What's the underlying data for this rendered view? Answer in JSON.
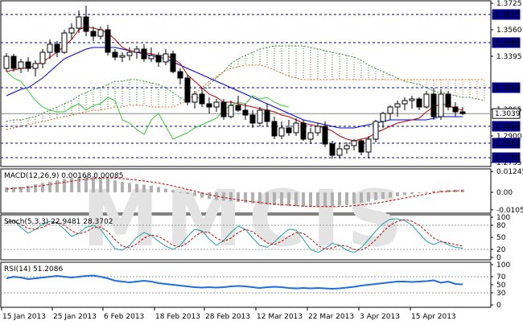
{
  "chart_data": [
    {
      "type": "candlestick",
      "pair_panel": "price",
      "axis_ticks": [
        "1.3725",
        "1.3560",
        "1.3395",
        "1.3065",
        "1.2900",
        "1.2735"
      ],
      "levels": [
        {
          "value": 1.3655,
          "label": "1.3655"
        },
        {
          "value": 1.348,
          "label": "1.3480"
        },
        {
          "value": 1.32,
          "label": "1.3200"
        },
        {
          "value": 1.3039,
          "label": "1.3039",
          "current": true
        },
        {
          "value": 1.296,
          "label": "1.2960"
        },
        {
          "value": 1.2855,
          "label": "1.2855"
        },
        {
          "value": 1.2765,
          "label": "1.2765"
        }
      ],
      "ylim": [
        1.271,
        1.374
      ],
      "x_labels": [
        "15 Jan 2013",
        "25 Jan 2013",
        "6 Feb 2013",
        "18 Feb 2013",
        "28 Feb 2013",
        "12 Mar 2013",
        "22 Mar 2013",
        "3 Apr 2013",
        "15 Apr 2013"
      ],
      "candles": [
        [
          1.332,
          1.3415,
          1.33,
          1.3395
        ],
        [
          1.3395,
          1.341,
          1.33,
          1.332
        ],
        [
          1.332,
          1.338,
          1.329,
          1.336
        ],
        [
          1.336,
          1.339,
          1.33,
          1.332
        ],
        [
          1.332,
          1.337,
          1.327,
          1.335
        ],
        [
          1.335,
          1.344,
          1.332,
          1.342
        ],
        [
          1.342,
          1.35,
          1.338,
          1.347
        ],
        [
          1.347,
          1.349,
          1.339,
          1.342
        ],
        [
          1.342,
          1.356,
          1.341,
          1.354
        ],
        [
          1.354,
          1.36,
          1.35,
          1.357
        ],
        [
          1.357,
          1.368,
          1.354,
          1.364
        ],
        [
          1.364,
          1.371,
          1.352,
          1.355
        ],
        [
          1.355,
          1.358,
          1.349,
          1.352
        ],
        [
          1.352,
          1.358,
          1.35,
          1.356
        ],
        [
          1.356,
          1.359,
          1.34,
          1.342
        ],
        [
          1.342,
          1.344,
          1.337,
          1.339
        ],
        [
          1.339,
          1.342,
          1.336,
          1.34
        ],
        [
          1.34,
          1.345,
          1.337,
          1.342
        ],
        [
          1.342,
          1.346,
          1.338,
          1.344
        ],
        [
          1.344,
          1.347,
          1.336,
          1.338
        ],
        [
          1.338,
          1.345,
          1.336,
          1.34
        ],
        [
          1.34,
          1.342,
          1.333,
          1.336
        ],
        [
          1.336,
          1.344,
          1.334,
          1.341
        ],
        [
          1.341,
          1.343,
          1.329,
          1.33
        ],
        [
          1.33,
          1.332,
          1.322,
          1.326
        ],
        [
          1.326,
          1.328,
          1.309,
          1.311
        ],
        [
          1.311,
          1.318,
          1.307,
          1.316
        ],
        [
          1.316,
          1.32,
          1.308,
          1.31
        ],
        [
          1.31,
          1.314,
          1.304,
          1.308
        ],
        [
          1.308,
          1.313,
          1.305,
          1.311
        ],
        [
          1.311,
          1.313,
          1.3,
          1.302
        ],
        [
          1.302,
          1.312,
          1.301,
          1.309
        ],
        [
          1.309,
          1.315,
          1.305,
          1.306
        ],
        [
          1.306,
          1.31,
          1.3,
          1.303
        ],
        [
          1.303,
          1.306,
          1.295,
          1.298
        ],
        [
          1.298,
          1.308,
          1.296,
          1.306
        ],
        [
          1.306,
          1.31,
          1.296,
          1.299
        ],
        [
          1.299,
          1.302,
          1.288,
          1.29
        ],
        [
          1.29,
          1.299,
          1.288,
          1.295
        ],
        [
          1.295,
          1.3,
          1.29,
          1.292
        ],
        [
          1.292,
          1.301,
          1.29,
          1.298
        ],
        [
          1.298,
          1.3,
          1.287,
          1.288
        ],
        [
          1.288,
          1.295,
          1.285,
          1.292
        ],
        [
          1.292,
          1.298,
          1.29,
          1.296
        ],
        [
          1.296,
          1.299,
          1.283,
          1.285
        ],
        [
          1.285,
          1.287,
          1.276,
          1.278
        ],
        [
          1.278,
          1.286,
          1.276,
          1.282
        ],
        [
          1.282,
          1.286,
          1.279,
          1.284
        ],
        [
          1.284,
          1.288,
          1.281,
          1.287
        ],
        [
          1.287,
          1.288,
          1.278,
          1.28
        ],
        [
          1.28,
          1.29,
          1.276,
          1.288
        ],
        [
          1.288,
          1.3,
          1.286,
          1.299
        ],
        [
          1.299,
          1.305,
          1.295,
          1.304
        ],
        [
          1.304,
          1.309,
          1.3,
          1.308
        ],
        [
          1.308,
          1.312,
          1.302,
          1.31
        ],
        [
          1.31,
          1.314,
          1.306,
          1.312
        ],
        [
          1.312,
          1.315,
          1.307,
          1.313
        ],
        [
          1.313,
          1.314,
          1.306,
          1.308
        ],
        [
          1.308,
          1.318,
          1.307,
          1.316
        ],
        [
          1.316,
          1.32,
          1.3,
          1.302
        ],
        [
          1.302,
          1.319,
          1.3,
          1.316
        ],
        [
          1.316,
          1.318,
          1.306,
          1.308
        ],
        [
          1.308,
          1.311,
          1.302,
          1.305
        ],
        [
          1.305,
          1.308,
          1.303,
          1.3039
        ]
      ],
      "tenkan": [
        1.33,
        1.331,
        1.332,
        1.332,
        1.334,
        1.336,
        1.339,
        1.342,
        1.346,
        1.35,
        1.356,
        1.358,
        1.357,
        1.356,
        1.354,
        1.35,
        1.345,
        1.343,
        1.342,
        1.342,
        1.341,
        1.34,
        1.34,
        1.338,
        1.335,
        1.328,
        1.324,
        1.32,
        1.316,
        1.314,
        1.311,
        1.311,
        1.31,
        1.309,
        1.308,
        1.307,
        1.306,
        1.305,
        1.303,
        1.302,
        1.3,
        1.298,
        1.297,
        1.296,
        1.295,
        1.293,
        1.29,
        1.288,
        1.287,
        1.288,
        1.289,
        1.292,
        1.294,
        1.296,
        1.298,
        1.299,
        1.3,
        1.301,
        1.305,
        1.308,
        1.31,
        1.309,
        1.307,
        1.306
      ],
      "kijun": [
        1.315,
        1.317,
        1.319,
        1.32,
        1.323,
        1.326,
        1.33,
        1.334,
        1.338,
        1.34,
        1.342,
        1.344,
        1.345,
        1.345,
        1.345,
        1.345,
        1.344,
        1.343,
        1.342,
        1.341,
        1.34,
        1.339,
        1.338,
        1.336,
        1.334,
        1.332,
        1.33,
        1.328,
        1.326,
        1.324,
        1.322,
        1.32,
        1.318,
        1.316,
        1.314,
        1.312,
        1.31,
        1.308,
        1.306,
        1.304,
        1.302,
        1.3,
        1.299,
        1.298,
        1.297,
        1.296,
        1.295,
        1.295,
        1.295,
        1.296,
        1.297,
        1.298,
        1.299,
        1.3,
        1.3,
        1.3,
        1.3,
        1.3,
        1.3,
        1.301,
        1.302,
        1.302,
        1.302,
        1.302
      ],
      "chikou": [
        1.33,
        1.326,
        1.324,
        1.318,
        1.312,
        1.308,
        1.306,
        1.305,
        1.305,
        1.308,
        1.31,
        1.306,
        1.309,
        1.31,
        1.314,
        1.312,
        1.3,
        1.298,
        1.294,
        1.291,
        1.3,
        1.304,
        1.296,
        1.288,
        1.29,
        1.292,
        1.295,
        1.297,
        1.299,
        1.301,
        1.306,
        1.309,
        1.311,
        1.31,
        1.315,
        1.313,
        1.314,
        1.311,
        1.309,
        1.308
      ],
      "cloud_span_a": [
        1.299,
        1.3,
        1.3,
        1.301,
        1.302,
        1.304,
        1.306,
        1.308,
        1.31,
        1.312,
        1.315,
        1.317,
        1.319,
        1.32,
        1.322,
        1.324,
        1.324,
        1.325,
        1.325,
        1.324,
        1.323,
        1.322,
        1.32,
        1.317,
        1.314,
        1.311,
        1.312,
        1.316,
        1.322,
        1.326,
        1.33,
        1.335,
        1.338,
        1.34,
        1.342,
        1.344,
        1.345,
        1.346,
        1.346,
        1.346,
        1.346,
        1.346,
        1.345,
        1.344,
        1.343,
        1.342,
        1.341,
        1.34,
        1.339,
        1.337,
        1.334,
        1.332,
        1.33,
        1.328,
        1.326,
        1.324,
        1.323,
        1.322,
        1.32,
        1.318,
        1.317,
        1.316,
        1.315,
        1.314,
        1.314,
        1.313,
        1.312,
        1.311,
        1.31,
        1.309,
        1.308,
        1.307,
        1.306,
        1.305,
        1.304,
        1.3035,
        1.303,
        1.3025,
        1.302,
        1.3015,
        1.301,
        1.3005,
        1.3,
        1.2995,
        1.299,
        1.2985,
        1.298,
        1.2975
      ],
      "cloud_span_b": [
        1.294,
        1.295,
        1.296,
        1.297,
        1.298,
        1.299,
        1.3,
        1.301,
        1.302,
        1.303,
        1.304,
        1.305,
        1.306,
        1.306,
        1.307,
        1.308,
        1.308,
        1.309,
        1.309,
        1.309,
        1.308,
        1.308,
        1.308,
        1.308,
        1.31,
        1.312,
        1.316,
        1.32,
        1.324,
        1.327,
        1.33,
        1.332,
        1.333,
        1.334,
        1.334,
        1.334,
        1.333,
        1.331,
        1.329,
        1.327,
        1.326,
        1.325,
        1.325,
        1.325,
        1.325,
        1.325,
        1.325,
        1.325,
        1.325,
        1.325,
        1.325,
        1.325,
        1.325,
        1.325,
        1.325,
        1.325,
        1.325,
        1.325,
        1.325,
        1.325,
        1.325,
        1.325,
        1.325,
        1.325,
        1.325,
        1.325,
        1.325,
        1.325,
        1.325,
        1.325,
        1.325,
        1.325,
        1.325,
        1.325,
        1.325,
        1.325,
        1.325,
        1.325,
        1.325,
        1.325,
        1.325,
        1.325,
        1.325,
        1.325,
        1.325,
        1.325,
        1.325,
        1.325
      ]
    },
    {
      "type": "histogram",
      "pair_panel": "macd",
      "title": "MACD(12,26,9) 0.00168 0.00085",
      "axis_ticks": [
        "0.01245",
        "0.00",
        "-0.0105"
      ],
      "ylim": [
        -0.0125,
        0.014
      ],
      "histogram": [
        0.003,
        0.0032,
        0.0034,
        0.004,
        0.0048,
        0.0056,
        0.0064,
        0.0072,
        0.008,
        0.0086,
        0.0092,
        0.0096,
        0.0095,
        0.009,
        0.0082,
        0.0072,
        0.0063,
        0.0056,
        0.005,
        0.0046,
        0.004,
        0.0032,
        0.0022,
        0.0012,
        0.0002,
        -0.001,
        -0.0022,
        -0.0032,
        -0.004,
        -0.0046,
        -0.005,
        -0.0054,
        -0.0058,
        -0.0062,
        -0.0066,
        -0.007,
        -0.0074,
        -0.0078,
        -0.008,
        -0.0082,
        -0.0084,
        -0.0086,
        -0.0088,
        -0.0088,
        -0.0086,
        -0.0084,
        -0.008,
        -0.0076,
        -0.007,
        -0.0064,
        -0.0056,
        -0.0048,
        -0.004,
        -0.0032,
        -0.0024,
        -0.0016,
        -0.001,
        -0.0004,
        0.0002,
        0.0008,
        0.0012,
        0.0015,
        0.0016,
        0.0017
      ],
      "signal": [
        0.002,
        0.0023,
        0.0026,
        0.003,
        0.0035,
        0.0041,
        0.0047,
        0.0054,
        0.006,
        0.0067,
        0.0073,
        0.0078,
        0.0082,
        0.0085,
        0.0086,
        0.0085,
        0.0082,
        0.0078,
        0.0073,
        0.0068,
        0.0062,
        0.0055,
        0.0047,
        0.0038,
        0.0028,
        0.0018,
        0.0007,
        -0.0004,
        -0.0014,
        -0.0023,
        -0.0031,
        -0.0038,
        -0.0045,
        -0.0051,
        -0.0056,
        -0.0061,
        -0.0066,
        -0.007,
        -0.0074,
        -0.0077,
        -0.008,
        -0.0082,
        -0.0084,
        -0.0085,
        -0.0086,
        -0.0086,
        -0.0085,
        -0.0083,
        -0.008,
        -0.0076,
        -0.0071,
        -0.0065,
        -0.0058,
        -0.005,
        -0.0042,
        -0.0034,
        -0.0026,
        -0.0018,
        -0.001,
        -0.0003,
        0.0003,
        0.0006,
        0.0008,
        0.0009
      ]
    },
    {
      "type": "line",
      "pair_panel": "stoch",
      "title": "Stoch(5,3,3) 22.9481 28.3702",
      "axis_ticks": [
        "100",
        "80",
        "50",
        "20",
        "0"
      ],
      "ylim": [
        0,
        100
      ],
      "series": [
        {
          "values": [
            88,
            92,
            75,
            60,
            70,
            82,
            90,
            86,
            70,
            52,
            60,
            75,
            80,
            70,
            45,
            22,
            18,
            30,
            50,
            62,
            55,
            40,
            28,
            20,
            30,
            52,
            70,
            66,
            46,
            30,
            42,
            62,
            78,
            70,
            48,
            30,
            25,
            38,
            56,
            70,
            68,
            45,
            20,
            12,
            22,
            35,
            30,
            18,
            12,
            24,
            44,
            66,
            84,
            95,
            96,
            92,
            80,
            60,
            40,
            32,
            40,
            32,
            25,
            23
          ]
        },
        {
          "values": [
            85,
            90,
            82,
            72,
            70,
            75,
            84,
            88,
            80,
            66,
            58,
            64,
            74,
            76,
            64,
            44,
            28,
            24,
            34,
            48,
            56,
            52,
            42,
            30,
            26,
            36,
            52,
            64,
            62,
            48,
            40,
            48,
            62,
            70,
            64,
            50,
            36,
            32,
            40,
            52,
            62,
            60,
            46,
            30,
            20,
            24,
            30,
            28,
            20,
            18,
            28,
            44,
            64,
            80,
            90,
            94,
            90,
            80,
            64,
            48,
            40,
            36,
            32,
            28
          ]
        }
      ]
    },
    {
      "type": "line",
      "pair_panel": "rsi",
      "title": "RSI(14) 51.2086",
      "axis_ticks": [
        "100",
        "70",
        "50",
        "30",
        "0"
      ],
      "ylim": [
        0,
        100
      ],
      "series": [
        {
          "values": [
            66,
            70,
            68,
            64,
            66,
            68,
            70,
            72,
            70,
            68,
            70,
            72,
            73,
            70,
            66,
            60,
            58,
            56,
            58,
            60,
            58,
            54,
            52,
            50,
            48,
            46,
            44,
            43,
            44,
            43,
            44,
            46,
            47,
            46,
            44,
            42,
            44,
            45,
            44,
            42,
            41,
            42,
            41,
            42,
            41,
            40,
            41,
            43,
            45,
            48,
            50,
            52,
            54,
            56,
            58,
            58,
            57,
            58,
            59,
            61,
            55,
            58,
            52,
            51
          ]
        }
      ]
    }
  ],
  "watermark": "MMCIS"
}
